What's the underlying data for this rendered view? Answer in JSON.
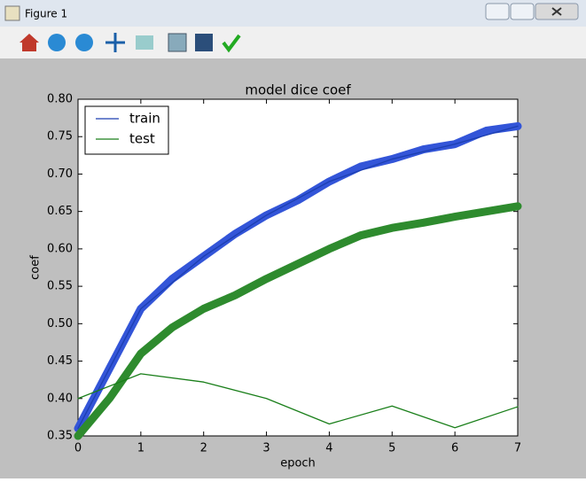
{
  "window": {
    "title": "Figure 1"
  },
  "chart_data": {
    "type": "line",
    "title": "model dice coef",
    "x_label": "epoch",
    "y_label": "coef",
    "x": [
      0,
      1,
      2,
      3,
      4,
      5,
      6,
      7
    ],
    "series": [
      {
        "name": "train",
        "color": "#1c3fb0",
        "values": [
          0.36,
          0.52,
          0.59,
          0.645,
          0.69,
          0.72,
          0.74,
          0.764
        ]
      },
      {
        "name": "test",
        "color": "#1a7f1a",
        "values": [
          0.4,
          0.433,
          0.422,
          0.4,
          0.366,
          0.39,
          0.361,
          0.389
        ]
      },
      {
        "color": "#3355d8",
        "marker": "o",
        "x": [
          0,
          0.5,
          1,
          1.5,
          2,
          2.5,
          3,
          3.5,
          4,
          4.5,
          5,
          5.5,
          6,
          6.5,
          7
        ],
        "values": [
          0.36,
          0.44,
          0.52,
          0.56,
          0.59,
          0.62,
          0.645,
          0.665,
          0.69,
          0.71,
          0.72,
          0.733,
          0.74,
          0.758,
          0.764
        ]
      },
      {
        "color": "#2e8b2e",
        "marker": "o",
        "x": [
          0,
          0.5,
          1,
          1.5,
          2,
          2.5,
          3,
          3.5,
          4,
          4.5,
          5,
          5.5,
          6,
          6.5,
          7
        ],
        "values": [
          0.35,
          0.4,
          0.46,
          0.495,
          0.52,
          0.538,
          0.56,
          0.58,
          0.6,
          0.618,
          0.628,
          0.635,
          0.643,
          0.65,
          0.657
        ]
      }
    ],
    "xlim": [
      0,
      7
    ],
    "xticks": [
      0,
      1,
      2,
      3,
      4,
      5,
      6,
      7
    ],
    "ylim": [
      0.35,
      0.8
    ],
    "yticks": [
      0.35,
      {
        "value": 0.4,
        "label": "0.40"
      },
      0.45,
      {
        "value": 0.5,
        "label": "0.50"
      },
      0.55,
      {
        "value": 0.6,
        "label": "0.60"
      },
      0.65,
      {
        "value": 0.7,
        "label": "0.70"
      },
      0.75,
      {
        "value": 0.8,
        "label": "0.80"
      }
    ],
    "legend": "upper left"
  }
}
